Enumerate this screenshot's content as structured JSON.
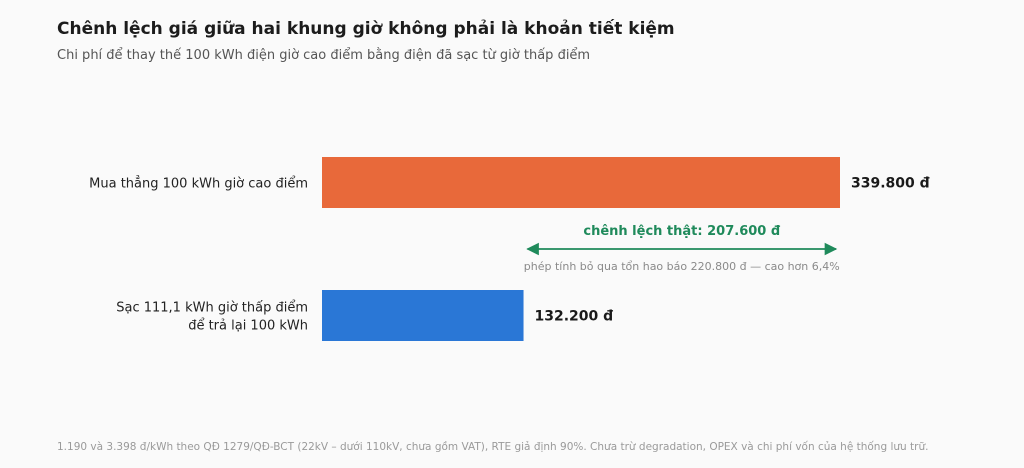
{
  "chart_data": {
    "type": "bar",
    "orientation": "horizontal",
    "title": "Chênh lệch giá giữa hai khung giờ không phải là khoản tiết kiệm",
    "subtitle": "Chi phí để thay thế 100 kWh điện giờ cao điểm bằng điện đã sạc từ giờ thấp điểm",
    "categories": [
      [
        "Mua thẳng 100 kWh giờ cao điểm"
      ],
      [
        "Sạc 111,1 kWh giờ thấp điểm",
        "để trả lại 100 kWh"
      ]
    ],
    "values": [
      339800,
      132200
    ],
    "value_labels": [
      "339.800 đ",
      "132.200 đ"
    ],
    "colors": [
      "#e8693a",
      "#2a77d6"
    ],
    "xlim": [
      0,
      339800
    ],
    "grid": false,
    "annotation": {
      "label": "chênh lệch thật: 207.600 đ",
      "value": 207600,
      "note": "phép tính bỏ qua tổn hao báo 220.800 đ — cao hơn 6,4%",
      "color": "#1f8a5b"
    },
    "footnote": "1.190 và 3.398 đ/kWh theo QĐ 1279/QĐ-BCT (22kV – dưới 110kV, chưa gồm VAT), RTE giả định 90%. Chưa trừ degradation, OPEX và chi phí vốn của hệ thống lưu trữ."
  }
}
